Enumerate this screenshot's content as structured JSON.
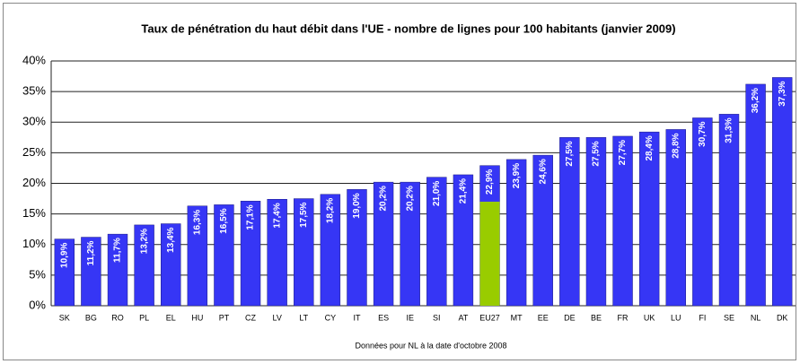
{
  "chart_data": {
    "type": "bar",
    "title": "Taux de pénétration du haut débit dans l'UE -  nombre de lignes pour 100 habitants (janvier 2009)",
    "categories": [
      "SK",
      "BG",
      "RO",
      "PL",
      "EL",
      "HU",
      "PT",
      "CZ",
      "LV",
      "LT",
      "CY",
      "IT",
      "ES",
      "IE",
      "SI",
      "AT",
      "EU27",
      "MT",
      "EE",
      "DE",
      "BE",
      "FR",
      "UK",
      "LU",
      "FI",
      "SE",
      "NL",
      "DK"
    ],
    "values": [
      10.9,
      11.2,
      11.7,
      13.2,
      13.4,
      16.3,
      16.5,
      17.1,
      17.4,
      17.5,
      18.2,
      19.0,
      20.2,
      20.2,
      21.0,
      21.4,
      22.9,
      23.9,
      24.6,
      27.5,
      27.5,
      27.7,
      28.4,
      28.8,
      30.7,
      31.3,
      36.2,
      37.3
    ],
    "value_labels": [
      "10,9%",
      "11,2%",
      "11,7%",
      "13,2%",
      "13,4%",
      "16,3%",
      "16,5%",
      "17,1%",
      "17,4%",
      "17,5%",
      "18,2%",
      "19,0%",
      "20,2%",
      "20,2%",
      "21,0%",
      "21,4%",
      "22,9%",
      "23,9%",
      "24,6%",
      "27,5%",
      "27,5%",
      "27,7%",
      "28,4%",
      "28,8%",
      "30,7%",
      "31,3%",
      "36,2%",
      "37,3%"
    ],
    "color": "#3636f5",
    "highlight": {
      "category": "EU27",
      "value": 17,
      "color": "#99cc00"
    },
    "ylim": [
      0,
      40
    ],
    "yticks": [
      {
        "value": 0,
        "label": "0%"
      },
      {
        "value": 5,
        "label": "5%"
      },
      {
        "value": 10,
        "label": "10%"
      },
      {
        "value": 15,
        "label": "15%"
      },
      {
        "value": 20,
        "label": "20%"
      },
      {
        "value": 25,
        "label": "25%"
      },
      {
        "value": 30,
        "label": "30%"
      },
      {
        "value": 35,
        "label": "35%"
      },
      {
        "value": 40,
        "label": "40%"
      }
    ],
    "grid": true,
    "footnote": "Données pour NL à la date d'octobre 2008"
  }
}
